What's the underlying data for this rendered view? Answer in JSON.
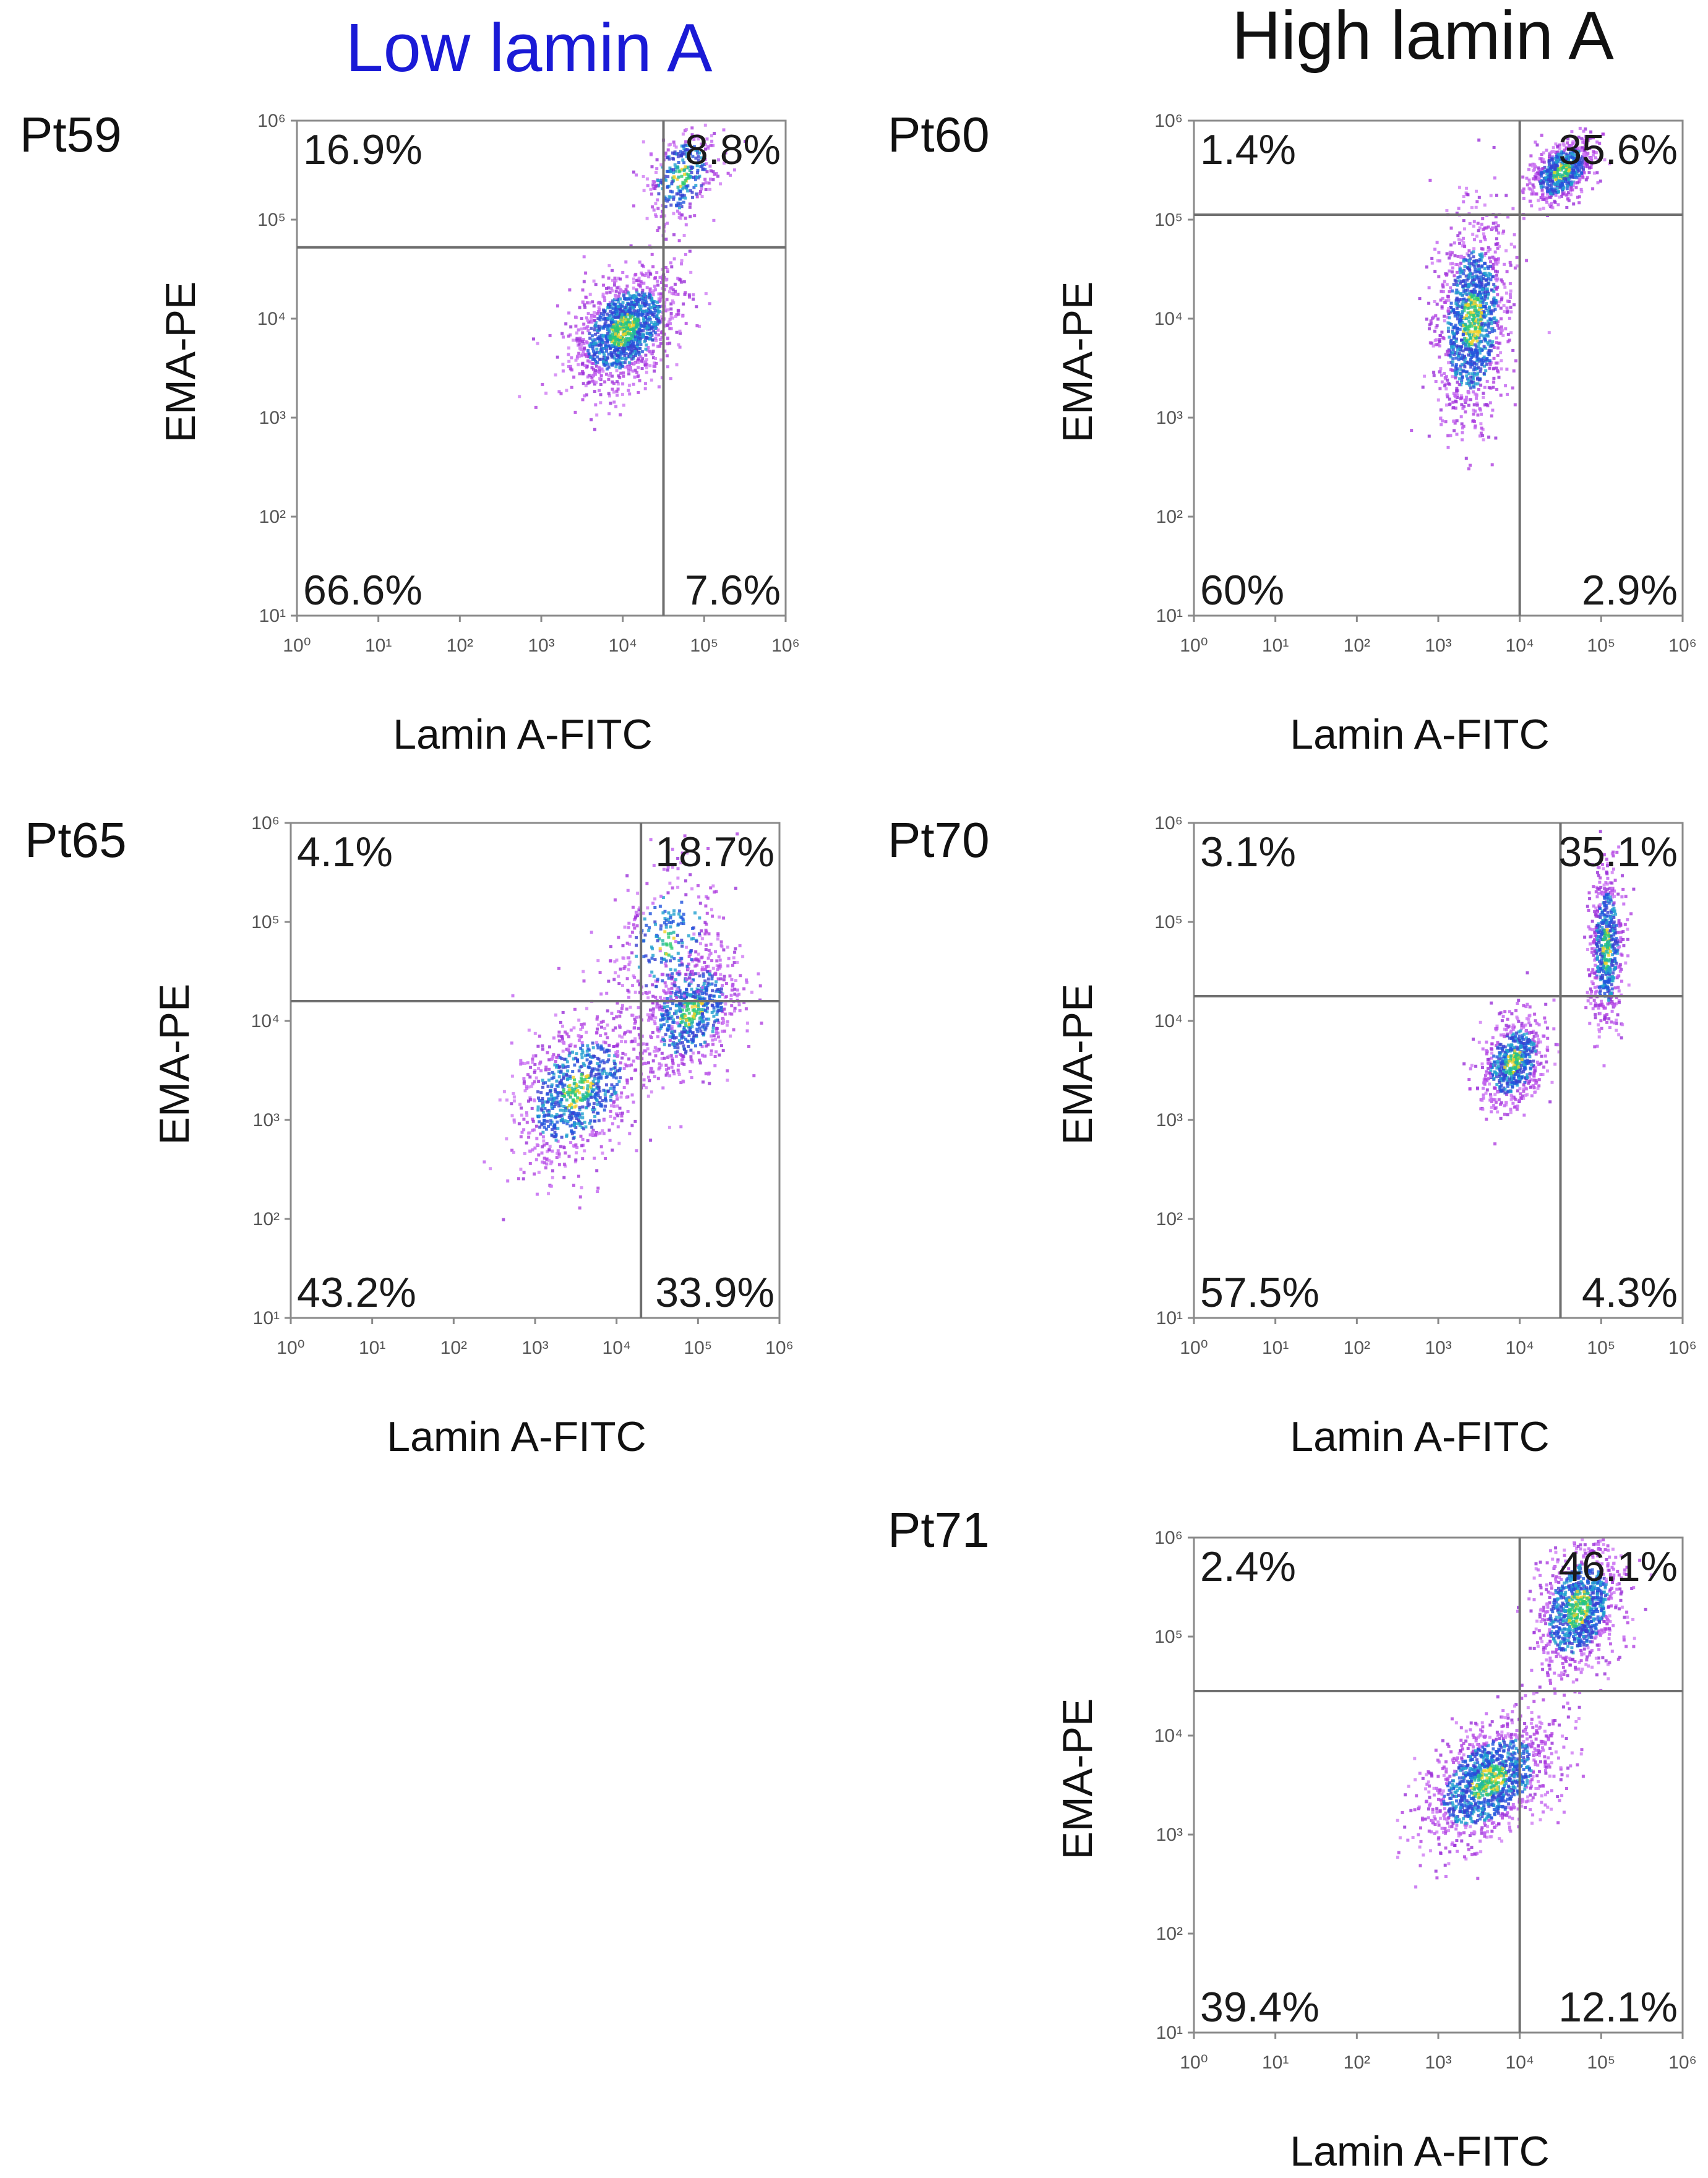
{
  "columns": [
    {
      "title": "Low lamin A",
      "color": "#1a1ad6"
    },
    {
      "title": "High lamin A",
      "color": "#111111"
    }
  ],
  "chart_data": [
    {
      "type": "scatter",
      "label": "Pt59",
      "group": "Low lamin A",
      "xlabel": "Lamin A-FITC",
      "ylabel": "EMA-PE",
      "xlim": [
        0,
        6
      ],
      "ylim": [
        1,
        6
      ],
      "x_ticks": [
        "0",
        "1",
        "2",
        "3",
        "4",
        "5",
        "6"
      ],
      "y_ticks": [
        "1",
        "2",
        "3",
        "4",
        "5",
        "6"
      ],
      "gate": {
        "x": 4.5,
        "y": 4.72
      },
      "quadrants": {
        "upper_left": "16.9%",
        "upper_right": "8.8%",
        "lower_left": "66.6%",
        "lower_right": "7.6%"
      },
      "populations": [
        {
          "x": 4.0,
          "y": 3.9,
          "sx": 0.32,
          "sy": 0.26,
          "n": 1400,
          "core": 0.55
        },
        {
          "x": 4.7,
          "y": 5.45,
          "sx": 0.22,
          "sy": 0.24,
          "n": 320,
          "core": 0.45
        }
      ]
    },
    {
      "type": "scatter",
      "label": "Pt60",
      "group": "High lamin A",
      "xlabel": "Lamin A-FITC",
      "ylabel": "EMA-PE",
      "xlim": [
        0,
        6
      ],
      "ylim": [
        1,
        6
      ],
      "x_ticks": [
        "0",
        "1",
        "2",
        "3",
        "4",
        "5",
        "6"
      ],
      "y_ticks": [
        "1",
        "2",
        "3",
        "4",
        "5",
        "6"
      ],
      "gate": {
        "x": 4.0,
        "y": 5.05
      },
      "quadrants": {
        "upper_left": "1.4%",
        "upper_right": "35.6%",
        "lower_left": "60%",
        "lower_right": "2.9%"
      },
      "populations": [
        {
          "x": 3.4,
          "y": 4.0,
          "sx": 0.22,
          "sy": 0.5,
          "n": 1200,
          "core": 0.5
        },
        {
          "x": 4.5,
          "y": 5.5,
          "sx": 0.2,
          "sy": 0.15,
          "n": 600,
          "core": 0.5
        }
      ]
    },
    {
      "type": "scatter",
      "label": "Pt65",
      "group": "Low lamin A",
      "xlabel": "Lamin A-FITC",
      "ylabel": "EMA-PE",
      "xlim": [
        0,
        6
      ],
      "ylim": [
        1,
        6
      ],
      "x_ticks": [
        "0",
        "1",
        "2",
        "3",
        "4",
        "5",
        "6"
      ],
      "y_ticks": [
        "1",
        "2",
        "3",
        "4",
        "5",
        "6"
      ],
      "gate": {
        "x": 4.3,
        "y": 4.2
      },
      "quadrants": {
        "upper_left": "4.1%",
        "upper_right": "18.7%",
        "lower_left": "43.2%",
        "lower_right": "33.9%"
      },
      "populations": [
        {
          "x": 3.5,
          "y": 3.3,
          "sx": 0.4,
          "sy": 0.35,
          "n": 900,
          "core": 0.4
        },
        {
          "x": 4.9,
          "y": 4.1,
          "sx": 0.3,
          "sy": 0.3,
          "n": 700,
          "core": 0.4
        },
        {
          "x": 4.6,
          "y": 4.8,
          "sx": 0.35,
          "sy": 0.4,
          "n": 300,
          "core": 0.2
        }
      ]
    },
    {
      "type": "scatter",
      "label": "Pt70",
      "group": "High lamin A",
      "xlabel": "Lamin A-FITC",
      "ylabel": "EMA-PE",
      "xlim": [
        0,
        6
      ],
      "ylim": [
        1,
        6
      ],
      "x_ticks": [
        "0",
        "1",
        "2",
        "3",
        "4",
        "5",
        "6"
      ],
      "y_ticks": [
        "1",
        "2",
        "3",
        "4",
        "5",
        "6"
      ],
      "gate": {
        "x": 4.5,
        "y": 4.25
      },
      "quadrants": {
        "upper_left": "3.1%",
        "upper_right": "35.1%",
        "lower_left": "57.5%",
        "lower_right": "4.3%"
      },
      "populations": [
        {
          "x": 3.9,
          "y": 3.6,
          "sx": 0.2,
          "sy": 0.22,
          "n": 650,
          "core": 0.5
        },
        {
          "x": 5.05,
          "y": 4.75,
          "sx": 0.1,
          "sy": 0.4,
          "n": 600,
          "core": 0.5
        }
      ]
    },
    {
      "type": "scatter",
      "label": "Pt71",
      "group": "High lamin A",
      "xlabel": "Lamin A-FITC",
      "ylabel": "EMA-PE",
      "xlim": [
        0,
        6
      ],
      "ylim": [
        1,
        6
      ],
      "x_ticks": [
        "0",
        "1",
        "2",
        "3",
        "4",
        "5",
        "6"
      ],
      "y_ticks": [
        "1",
        "2",
        "3",
        "4",
        "5",
        "6"
      ],
      "gate": {
        "x": 4.0,
        "y": 4.45
      },
      "quadrants": {
        "upper_left": "2.4%",
        "upper_right": "46.1%",
        "lower_left": "39.4%",
        "lower_right": "12.1%"
      },
      "populations": [
        {
          "x": 3.6,
          "y": 3.55,
          "sx": 0.4,
          "sy": 0.28,
          "n": 1300,
          "core": 0.5
        },
        {
          "x": 4.7,
          "y": 5.3,
          "sx": 0.25,
          "sy": 0.3,
          "n": 1000,
          "core": 0.6
        }
      ]
    }
  ]
}
